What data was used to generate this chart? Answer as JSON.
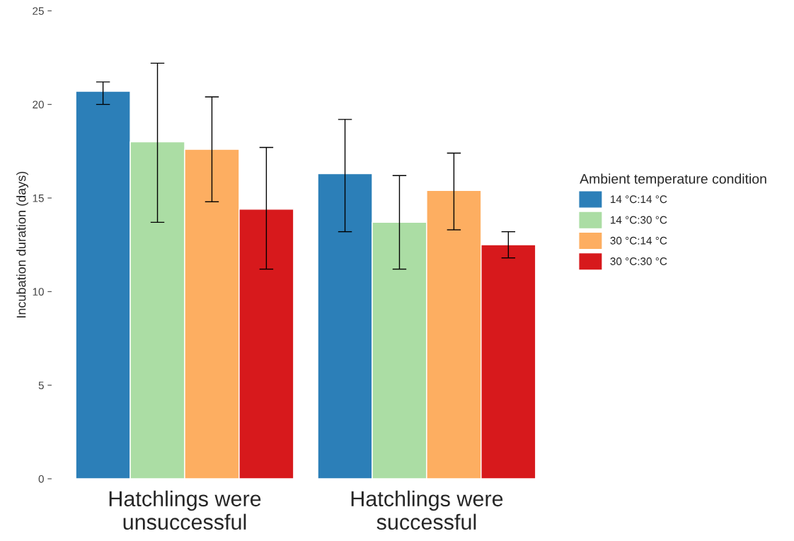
{
  "chart_data": {
    "type": "bar",
    "ylabel": "Incubation duration (days)",
    "legend_title": "Ambient temperature condition",
    "categories": [
      "Hatchlings were\nunsuccessful",
      "Hatchlings were\nsuccessful"
    ],
    "series": [
      {
        "name": "14 °C:14 °C",
        "color": "#2c7fb8",
        "values": [
          20.7,
          16.3
        ],
        "errors": [
          [
            20.0,
            21.2
          ],
          [
            13.2,
            19.2
          ]
        ]
      },
      {
        "name": "14 °C:30 °C",
        "color": "#abdda4",
        "values": [
          18.0,
          13.7
        ],
        "errors": [
          [
            13.7,
            22.2
          ],
          [
            11.2,
            16.2
          ]
        ]
      },
      {
        "name": "30 °C:14 °C",
        "color": "#fdae61",
        "values": [
          17.6,
          15.4
        ],
        "errors": [
          [
            14.8,
            20.4
          ],
          [
            13.3,
            17.4
          ]
        ]
      },
      {
        "name": "30 °C:30 °C",
        "color": "#d7191c",
        "values": [
          14.4,
          12.5
        ],
        "errors": [
          [
            11.2,
            17.7
          ],
          [
            11.8,
            13.2
          ]
        ]
      }
    ],
    "ylim": [
      0,
      25
    ],
    "yticks": [
      0,
      5,
      10,
      15,
      20,
      25
    ],
    "grid": false,
    "legend": "right"
  }
}
